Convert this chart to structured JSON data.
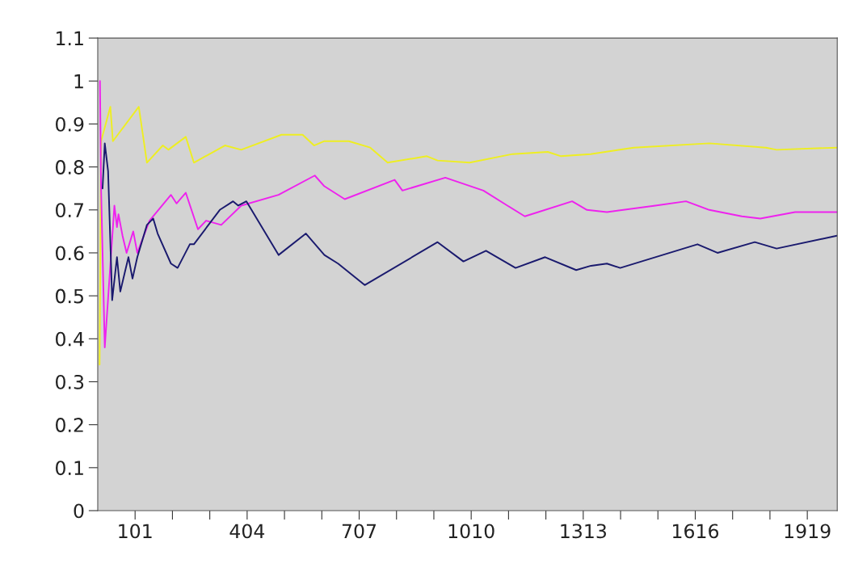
{
  "chart_data": {
    "type": "line",
    "xlim": [
      0,
      2000
    ],
    "ylim": [
      0,
      1.1
    ],
    "xticks": [
      101,
      {
        "value": 202,
        "label": null
      },
      {
        "value": 303,
        "label": null
      },
      404,
      {
        "value": 505,
        "label": null
      },
      {
        "value": 606,
        "label": null
      },
      707,
      {
        "value": 808,
        "label": null
      },
      {
        "value": 909,
        "label": null
      },
      1010,
      {
        "value": 1111,
        "label": null
      },
      {
        "value": 1212,
        "label": null
      },
      1313,
      {
        "value": 1414,
        "label": null
      },
      {
        "value": 1515,
        "label": null
      },
      1616,
      {
        "value": 1717,
        "label": null
      },
      {
        "value": 1818,
        "label": null
      },
      1919
    ],
    "yticks": [
      0,
      0.1,
      0.2,
      0.3,
      0.4,
      0.5,
      0.6,
      0.7,
      0.8,
      0.9,
      1,
      1.1
    ],
    "grid": false,
    "legend": false,
    "marker": "none",
    "line_style": "solid",
    "series": [
      {
        "color": "#eeee22",
        "x": [
          5,
          9,
          34,
          41,
          111,
          133,
          176,
          191,
          238,
          260,
          344,
          388,
          497,
          554,
          585,
          613,
          679,
          737,
          784,
          890,
          919,
          1006,
          1122,
          1217,
          1253,
          1333,
          1450,
          1654,
          1807,
          1836,
          1999
        ],
        "values": [
          0.34,
          0.86,
          0.94,
          0.86,
          0.94,
          0.81,
          0.85,
          0.84,
          0.87,
          0.81,
          0.85,
          0.84,
          0.875,
          0.875,
          0.85,
          0.86,
          0.86,
          0.845,
          0.81,
          0.825,
          0.815,
          0.81,
          0.83,
          0.835,
          0.825,
          0.83,
          0.845,
          0.855,
          0.845,
          0.84,
          0.845
        ]
      },
      {
        "color": "#ee22ee",
        "x": [
          6,
          9,
          19,
          45,
          52,
          56,
          67,
          78,
          96,
          107,
          140,
          198,
          213,
          238,
          271,
          293,
          334,
          388,
          489,
          587,
          613,
          668,
          803,
          824,
          940,
          1043,
          1108,
          1155,
          1283,
          1323,
          1377,
          1508,
          1591,
          1654,
          1742,
          1792,
          1886,
          1999
        ],
        "values": [
          1.0,
          0.75,
          0.38,
          0.71,
          0.66,
          0.69,
          0.64,
          0.6,
          0.65,
          0.6,
          0.675,
          0.735,
          0.715,
          0.74,
          0.655,
          0.675,
          0.665,
          0.71,
          0.735,
          0.78,
          0.755,
          0.725,
          0.77,
          0.745,
          0.775,
          0.745,
          0.71,
          0.685,
          0.72,
          0.7,
          0.695,
          0.71,
          0.72,
          0.7,
          0.685,
          0.68,
          0.695,
          0.695
        ]
      },
      {
        "color": "#1a1a6e",
        "x": [
          13,
          19,
          28,
          39,
          52,
          61,
          72,
          83,
          94,
          107,
          133,
          150,
          162,
          198,
          216,
          249,
          260,
          330,
          366,
          380,
          402,
          489,
          563,
          613,
          650,
          722,
          919,
          989,
          1050,
          1130,
          1210,
          1294,
          1334,
          1377,
          1413,
          1622,
          1676,
          1777,
          1836,
          1999
        ],
        "values": [
          0.75,
          0.855,
          0.79,
          0.49,
          0.59,
          0.51,
          0.55,
          0.59,
          0.54,
          0.59,
          0.665,
          0.68,
          0.645,
          0.575,
          0.565,
          0.62,
          0.62,
          0.7,
          0.72,
          0.71,
          0.72,
          0.595,
          0.645,
          0.595,
          0.575,
          0.525,
          0.625,
          0.58,
          0.605,
          0.565,
          0.59,
          0.56,
          0.57,
          0.575,
          0.565,
          0.62,
          0.6,
          0.625,
          0.61,
          0.64
        ]
      }
    ]
  }
}
